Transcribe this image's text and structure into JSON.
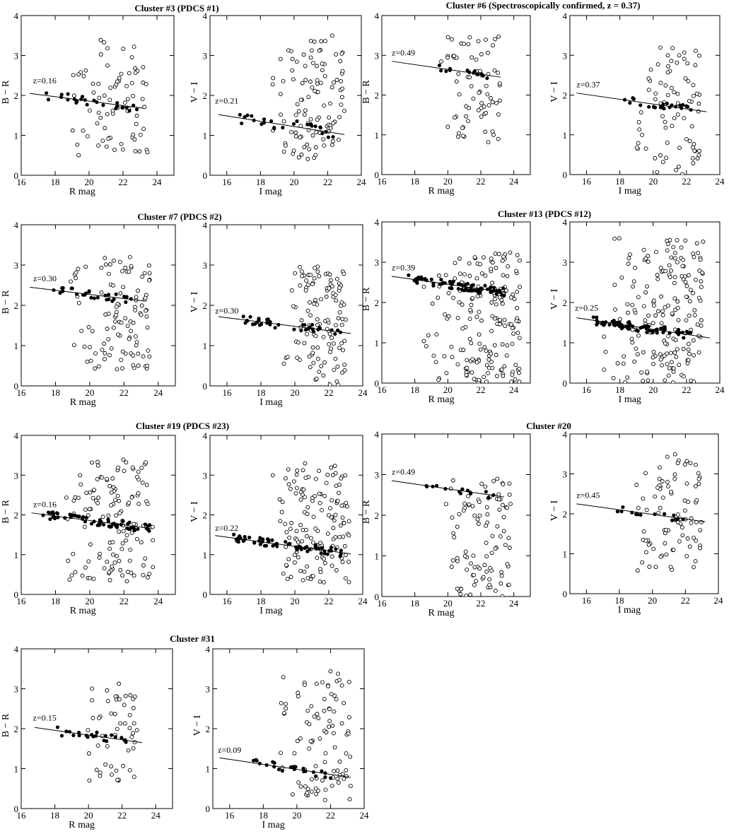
{
  "colors": {
    "ink": "#000000",
    "background": "#ffffff"
  },
  "clusters": [
    {
      "title": "Cluster #3   (PDCS #1)"
    },
    {
      "title": "Cluster #6  (Spectroscopically confirmed, z = 0.37)"
    },
    {
      "title": "Cluster #7   (PDCS #2)"
    },
    {
      "title": "Cluster #13  (PDCS #12)"
    },
    {
      "title": "Cluster #19  (PDCS #23)"
    },
    {
      "title": "Cluster #20"
    },
    {
      "title": "Cluster #31"
    }
  ],
  "chart_data": [
    {
      "type": "scatter",
      "cluster": "Cluster #3   (PDCS #1)",
      "xlabel": "R  mag",
      "ylabel": "B − R",
      "xlim": [
        16,
        25
      ],
      "ylim": [
        0,
        4
      ],
      "xticks": [
        16,
        18,
        20,
        22,
        24
      ],
      "yticks": [
        0,
        1,
        2,
        3,
        4
      ],
      "annotation": "z=0.16",
      "annotation_pos": [
        16.7,
        2.3
      ],
      "fit_line": {
        "x": [
          16.5,
          23.2
        ],
        "y": [
          2.05,
          1.68
        ]
      },
      "cloud": {
        "n": 78,
        "seed": 11,
        "xmin": 18.5,
        "xmax": 23.5,
        "ymin": 0.5,
        "ymax": 3.4
      },
      "members": {
        "n": 24,
        "seed": 12,
        "xmin": 17.4,
        "xmax": 23.0,
        "scatter": 0.12
      }
    },
    {
      "type": "scatter",
      "cluster": "Cluster #3   (PDCS #1)",
      "xlabel": "I  mag",
      "ylabel": "V − I",
      "xlim": [
        15,
        24
      ],
      "ylim": [
        0,
        4
      ],
      "xticks": [
        16,
        18,
        20,
        22,
        24
      ],
      "yticks": [
        0,
        1,
        2,
        3,
        4
      ],
      "annotation": "z=0.21",
      "annotation_pos": [
        15.3,
        1.8
      ],
      "fit_line": {
        "x": [
          15.5,
          23.0
        ],
        "y": [
          1.52,
          1.02
        ]
      },
      "cloud": {
        "n": 110,
        "seed": 21,
        "xmin": 18.7,
        "xmax": 23.0,
        "ymin": 0.4,
        "ymax": 3.5
      },
      "members": {
        "n": 26,
        "seed": 22,
        "xmin": 16.6,
        "xmax": 22.6,
        "scatter": 0.15
      }
    },
    {
      "type": "scatter",
      "cluster": "Cluster #6  (Spectroscopically confirmed, z = 0.37)",
      "xlabel": "R  mag",
      "ylabel": "B − R",
      "xlim": [
        16,
        25
      ],
      "ylim": [
        0,
        4
      ],
      "xticks": [
        16,
        18,
        20,
        22,
        24
      ],
      "yticks": [
        0,
        1,
        2,
        3,
        4
      ],
      "annotation": "z=0.49",
      "annotation_pos": [
        16.6,
        3.0
      ],
      "fit_line": {
        "x": [
          16.6,
          23.2
        ],
        "y": [
          2.85,
          2.45
        ]
      },
      "cloud": {
        "n": 72,
        "seed": 31,
        "xmin": 19.5,
        "xmax": 23.2,
        "ymin": 0.7,
        "ymax": 3.5
      },
      "members": {
        "n": 14,
        "seed": 32,
        "xmin": 19.0,
        "xmax": 22.6,
        "scatter": 0.08
      }
    },
    {
      "type": "scatter",
      "cluster": "Cluster #6  (Spectroscopically confirmed, z = 0.37)",
      "xlabel": "I  mag",
      "ylabel": "V − I",
      "xlim": [
        15,
        24
      ],
      "ylim": [
        0,
        4
      ],
      "xticks": [
        16,
        18,
        20,
        22,
        24
      ],
      "yticks": [
        0,
        1,
        2,
        3,
        4
      ],
      "annotation": "z=0.37",
      "annotation_pos": [
        15.4,
        2.2
      ],
      "fit_line": {
        "x": [
          15.4,
          23.2
        ],
        "y": [
          2.05,
          1.58
        ]
      },
      "cloud": {
        "n": 78,
        "seed": 41,
        "xmin": 18.8,
        "xmax": 22.8,
        "ymin": 0.0,
        "ymax": 3.2
      },
      "members": {
        "n": 24,
        "seed": 42,
        "xmin": 18.2,
        "xmax": 22.3,
        "scatter": 0.09
      }
    },
    {
      "type": "scatter",
      "cluster": "Cluster #7   (PDCS #2)",
      "xlabel": "R  mag",
      "ylabel": "B − R",
      "xlim": [
        16,
        25
      ],
      "ylim": [
        0,
        4
      ],
      "xticks": [
        16,
        18,
        20,
        22,
        24
      ],
      "yticks": [
        0,
        1,
        2,
        3,
        4
      ],
      "annotation": "z=0.30",
      "annotation_pos": [
        16.7,
        2.6
      ],
      "fit_line": {
        "x": [
          16.5,
          23.3
        ],
        "y": [
          2.45,
          2.1
        ]
      },
      "cloud": {
        "n": 108,
        "seed": 51,
        "xmin": 18.7,
        "xmax": 23.5,
        "ymin": 0.4,
        "ymax": 3.2
      },
      "members": {
        "n": 28,
        "seed": 52,
        "xmin": 17.7,
        "xmax": 22.6,
        "scatter": 0.1
      }
    },
    {
      "type": "scatter",
      "cluster": "Cluster #7   (PDCS #2)",
      "xlabel": "I  mag",
      "ylabel": "V − I",
      "xlim": [
        15,
        24
      ],
      "ylim": [
        0,
        4
      ],
      "xticks": [
        16,
        18,
        20,
        22,
        24
      ],
      "yticks": [
        0,
        1,
        2,
        3,
        4
      ],
      "annotation": "z=0.30",
      "annotation_pos": [
        15.3,
        1.8
      ],
      "fit_line": {
        "x": [
          15.5,
          23.3
        ],
        "y": [
          1.72,
          1.3
        ]
      },
      "cloud": {
        "n": 118,
        "seed": 61,
        "xmin": 19.0,
        "xmax": 23.0,
        "ymin": 0.0,
        "ymax": 3.0
      },
      "members": {
        "n": 36,
        "seed": 62,
        "xmin": 16.8,
        "xmax": 22.8,
        "scatter": 0.1
      }
    },
    {
      "type": "scatter",
      "cluster": "Cluster #13  (PDCS #12)",
      "xlabel": "R  mag",
      "ylabel": "B − R",
      "xlim": [
        16,
        25
      ],
      "ylim": [
        0,
        4
      ],
      "xticks": [
        16,
        18,
        20,
        22,
        24
      ],
      "yticks": [
        0,
        1,
        2,
        3,
        4
      ],
      "annotation": "z=0.39",
      "annotation_pos": [
        16.6,
        2.8
      ],
      "fit_line": {
        "x": [
          16.6,
          23.5
        ],
        "y": [
          2.65,
          2.25
        ]
      },
      "cloud": {
        "n": 190,
        "seed": 71,
        "xmin": 18.5,
        "xmax": 24.4,
        "ymin": 0.0,
        "ymax": 3.3
      },
      "members": {
        "n": 70,
        "seed": 72,
        "xmin": 17.4,
        "xmax": 23.5,
        "scatter": 0.1
      }
    },
    {
      "type": "scatter",
      "cluster": "Cluster #13  (PDCS #12)",
      "xlabel": "I  mag",
      "ylabel": "V − I",
      "xlim": [
        15,
        24
      ],
      "ylim": [
        0,
        4
      ],
      "xticks": [
        16,
        18,
        20,
        22,
        24
      ],
      "yticks": [
        0,
        1,
        2,
        3,
        4
      ],
      "annotation": "z=0.25",
      "annotation_pos": [
        15.3,
        1.8
      ],
      "fit_line": {
        "x": [
          15.4,
          23.4
        ],
        "y": [
          1.62,
          1.12
        ]
      },
      "cloud": {
        "n": 185,
        "seed": 81,
        "xmin": 17.0,
        "xmax": 23.0,
        "ymin": 0.0,
        "ymax": 3.6
      },
      "members": {
        "n": 70,
        "seed": 82,
        "xmin": 16.4,
        "xmax": 22.3,
        "scatter": 0.1
      }
    },
    {
      "type": "scatter",
      "cluster": "Cluster #19  (PDCS #23)",
      "xlabel": "R  mag",
      "ylabel": "B − R",
      "xlim": [
        16,
        25
      ],
      "ylim": [
        0,
        4
      ],
      "xticks": [
        16,
        18,
        20,
        22,
        24
      ],
      "yticks": [
        0,
        1,
        2,
        3,
        4
      ],
      "annotation": "z=0.16",
      "annotation_pos": [
        16.7,
        2.2
      ],
      "fit_line": {
        "x": [
          16.6,
          23.7
        ],
        "y": [
          2.05,
          1.65
        ]
      },
      "cloud": {
        "n": 130,
        "seed": 91,
        "xmin": 18.5,
        "xmax": 23.8,
        "ymin": 0.3,
        "ymax": 3.4
      },
      "members": {
        "n": 60,
        "seed": 92,
        "xmin": 17.2,
        "xmax": 23.5,
        "scatter": 0.1
      }
    },
    {
      "type": "scatter",
      "cluster": "Cluster #19  (PDCS #23)",
      "xlabel": "I  mag",
      "ylabel": "V − I",
      "xlim": [
        15,
        24
      ],
      "ylim": [
        0,
        4
      ],
      "xticks": [
        16,
        18,
        20,
        22,
        24
      ],
      "yticks": [
        0,
        1,
        2,
        3,
        4
      ],
      "annotation": "z=0.22",
      "annotation_pos": [
        15.3,
        1.6
      ],
      "fit_line": {
        "x": [
          15.3,
          23.3
        ],
        "y": [
          1.48,
          1.02
        ]
      },
      "cloud": {
        "n": 140,
        "seed": 101,
        "xmin": 18.4,
        "xmax": 23.2,
        "ymin": 0.3,
        "ymax": 3.3
      },
      "members": {
        "n": 60,
        "seed": 102,
        "xmin": 16.3,
        "xmax": 22.8,
        "scatter": 0.1
      }
    },
    {
      "type": "scatter",
      "cluster": "Cluster #20",
      "xlabel": "R  mag",
      "ylabel": "B − R",
      "xlim": [
        16,
        25
      ],
      "ylim": [
        0,
        4
      ],
      "xticks": [
        16,
        18,
        20,
        22,
        24
      ],
      "yticks": [
        0,
        1,
        2,
        3,
        4
      ],
      "annotation": "z=0.49",
      "annotation_pos": [
        16.6,
        3.0
      ],
      "fit_line": {
        "x": [
          16.6,
          23.4
        ],
        "y": [
          2.85,
          2.45
        ]
      },
      "cloud": {
        "n": 100,
        "seed": 111,
        "xmin": 19.8,
        "xmax": 23.8,
        "ymin": 0.0,
        "ymax": 2.9
      },
      "members": {
        "n": 14,
        "seed": 112,
        "xmin": 18.6,
        "xmax": 23.1,
        "scatter": 0.07
      }
    },
    {
      "type": "scatter",
      "cluster": "Cluster #20",
      "xlabel": "I  mag",
      "ylabel": "V − I",
      "xlim": [
        15,
        24
      ],
      "ylim": [
        0,
        4
      ],
      "xticks": [
        16,
        18,
        20,
        22,
        24
      ],
      "yticks": [
        0,
        1,
        2,
        3,
        4
      ],
      "annotation": "z=0.45",
      "annotation_pos": [
        15.4,
        2.4
      ],
      "fit_line": {
        "x": [
          15.4,
          23.2
        ],
        "y": [
          2.25,
          1.8
        ]
      },
      "cloud": {
        "n": 88,
        "seed": 121,
        "xmin": 19.0,
        "xmax": 23.0,
        "ymin": 0.5,
        "ymax": 3.5
      },
      "members": {
        "n": 14,
        "seed": 122,
        "xmin": 17.4,
        "xmax": 22.2,
        "scatter": 0.08
      }
    },
    {
      "type": "scatter",
      "cluster": "Cluster #31",
      "xlabel": "R  mag",
      "ylabel": "B − R",
      "xlim": [
        16,
        25
      ],
      "ylim": [
        0,
        4
      ],
      "xticks": [
        16,
        18,
        20,
        22,
        24
      ],
      "yticks": [
        0,
        1,
        2,
        3,
        4
      ],
      "annotation": "z=0.15",
      "annotation_pos": [
        16.7,
        2.2
      ],
      "fit_line": {
        "x": [
          16.8,
          23.2
        ],
        "y": [
          2.03,
          1.65
        ]
      },
      "cloud": {
        "n": 52,
        "seed": 131,
        "xmin": 19.5,
        "xmax": 22.9,
        "ymin": 0.7,
        "ymax": 3.2
      },
      "members": {
        "n": 22,
        "seed": 132,
        "xmin": 17.7,
        "xmax": 22.6,
        "scatter": 0.12
      }
    },
    {
      "type": "scatter",
      "cluster": "Cluster #31",
      "xlabel": "I  mag",
      "ylabel": "V − I",
      "xlim": [
        15,
        24
      ],
      "ylim": [
        0,
        4
      ],
      "xticks": [
        16,
        18,
        20,
        22,
        24
      ],
      "yticks": [
        0,
        1,
        2,
        3,
        4
      ],
      "annotation": "z=0.09",
      "annotation_pos": [
        15.3,
        1.4
      ],
      "fit_line": {
        "x": [
          15.4,
          23.2
        ],
        "y": [
          1.27,
          0.78
        ]
      },
      "cloud": {
        "n": 96,
        "seed": 141,
        "xmin": 19.0,
        "xmax": 23.2,
        "ymin": 0.2,
        "ymax": 3.5
      },
      "members": {
        "n": 24,
        "seed": 142,
        "xmin": 17.3,
        "xmax": 22.9,
        "scatter": 0.1
      }
    }
  ]
}
